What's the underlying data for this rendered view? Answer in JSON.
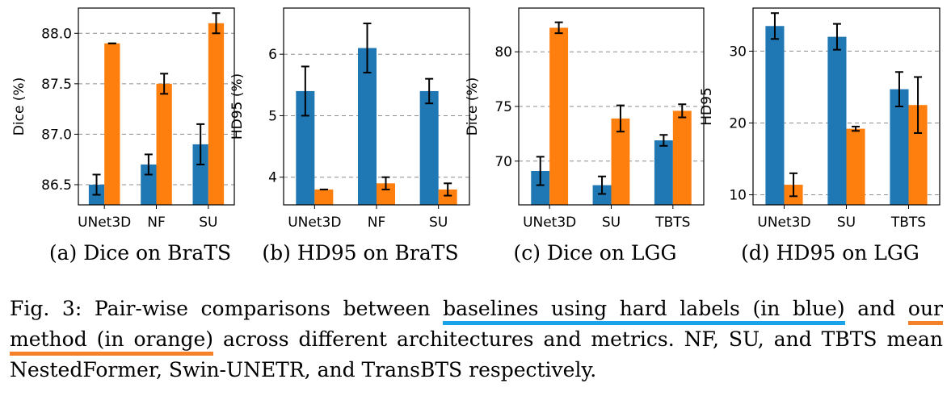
{
  "colors": {
    "baseline": "#1f77b4",
    "ours": "#ff7f0e",
    "underline_blue": "#1aa3e8",
    "underline_orange": "#f5822a"
  },
  "chart_data": [
    {
      "type": "bar",
      "subcaption": "(a) Dice on BraTS",
      "ylabel": "Dice (%)",
      "categories": [
        "UNet3D",
        "NF",
        "SU"
      ],
      "ylim": [
        86.3,
        88.25
      ],
      "yticks": [
        86.5,
        87.0,
        87.5,
        88.0
      ],
      "ytick_labels": [
        "86.5",
        "87.0",
        "87.5",
        "88.0"
      ],
      "grid": "y-dashed",
      "series": [
        {
          "values": [
            86.5,
            86.7,
            86.9
          ],
          "errors": [
            0.1,
            0.1,
            0.2
          ]
        },
        {
          "values": [
            87.9,
            87.5,
            88.1
          ],
          "errors": [
            0.0,
            0.1,
            0.1
          ]
        }
      ]
    },
    {
      "type": "bar",
      "subcaption": "(b) HD95 on BraTS",
      "ylabel": "HD95 (%)",
      "categories": [
        "UNet3D",
        "NF",
        "SU"
      ],
      "ylim": [
        3.55,
        6.75
      ],
      "yticks": [
        4,
        5,
        6
      ],
      "ytick_labels": [
        "4",
        "5",
        "6"
      ],
      "grid": "y-dashed",
      "series": [
        {
          "values": [
            5.4,
            6.1,
            5.4
          ],
          "errors": [
            0.4,
            0.4,
            0.2
          ]
        },
        {
          "values": [
            3.8,
            3.9,
            3.8
          ],
          "errors": [
            0.0,
            0.1,
            0.1
          ]
        }
      ]
    },
    {
      "type": "bar",
      "subcaption": "(c) Dice on LGG",
      "ylabel": "Dice (%)",
      "categories": [
        "UNet3D",
        "SU",
        "TBTS"
      ],
      "ylim": [
        66.0,
        84.0
      ],
      "yticks": [
        70,
        75,
        80
      ],
      "ytick_labels": [
        "70",
        "75",
        "80"
      ],
      "grid": "y-dashed",
      "series": [
        {
          "values": [
            69.1,
            67.8,
            71.9
          ],
          "errors": [
            1.3,
            0.8,
            0.5
          ]
        },
        {
          "values": [
            82.2,
            73.9,
            74.6
          ],
          "errors": [
            0.5,
            1.2,
            0.6
          ]
        }
      ]
    },
    {
      "type": "bar",
      "subcaption": "(d) HD95 on LGG",
      "ylabel": "HD95",
      "categories": [
        "UNet3D",
        "SU",
        "TBTS"
      ],
      "ylim": [
        8.6,
        36.0
      ],
      "yticks": [
        10,
        20,
        30
      ],
      "ytick_labels": [
        "10",
        "20",
        "30"
      ],
      "grid": "y-dashed",
      "series": [
        {
          "values": [
            33.5,
            32.0,
            24.7
          ],
          "errors": [
            1.8,
            1.8,
            2.4
          ]
        },
        {
          "values": [
            11.4,
            19.2,
            22.5
          ],
          "errors": [
            1.6,
            0.3,
            3.9
          ]
        }
      ]
    }
  ],
  "caption": {
    "prefix": "Fig. 3: Pair-wise comparisons between",
    "blue_phrase": "baselines using hard labels (in blue)",
    "connector": "and",
    "orange_phrase": "our method (in orange)",
    "suffix": "across different architectures and metrics. NF, SU, and TBTS mean NestedFormer, Swin-UNETR, and TransBTS respectively."
  }
}
